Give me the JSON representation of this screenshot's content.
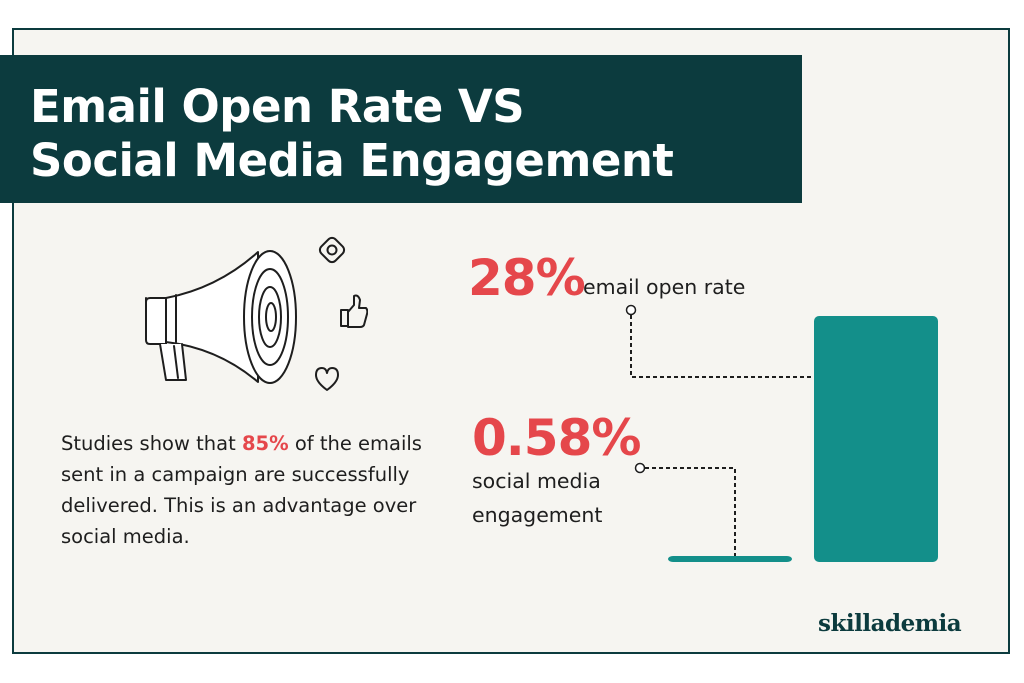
{
  "header": {
    "title_line1": "Email Open Rate VS",
    "title_line2": "Social Media Engagement"
  },
  "body": {
    "text_before": "Studies show that ",
    "highlight": "85%",
    "text_after": " of the emails sent in a campaign are successfully delivered. This is an advantage over social media."
  },
  "chart_data": {
    "type": "bar",
    "categories": [
      "social media engagement",
      "email open rate"
    ],
    "values": [
      0.58,
      28
    ],
    "value_labels": [
      "0.58%",
      "28%"
    ],
    "ylim": [
      0,
      28
    ]
  },
  "labels": {
    "email_value": "28%",
    "email_caption": "email open rate",
    "social_value": "0.58%",
    "social_caption_line1": "social media",
    "social_caption_line2": "engagement"
  },
  "logo": {
    "text": "skillademia"
  },
  "icons": [
    "megaphone-icon",
    "instagram-icon",
    "thumbs-up-icon",
    "heart-icon"
  ],
  "colors": {
    "banner": "#0c3b3e",
    "accent": "#e5474b",
    "bar": "#138f8a",
    "background": "#f6f5f1"
  }
}
